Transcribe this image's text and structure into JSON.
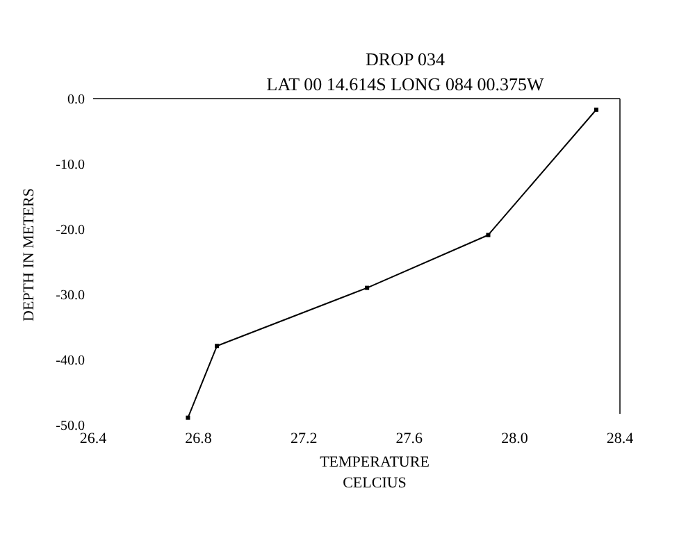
{
  "chart_data": {
    "type": "line",
    "title": "DROP 034",
    "subtitle": "LAT 00 14.614S  LONG 084 00.375W",
    "xlabel": "TEMPERATURE\nCELCIUS",
    "ylabel": "DEPTH IN METERS",
    "x": [
      28.31,
      27.9,
      27.44,
      26.87,
      26.76
    ],
    "series": [
      {
        "color": "#000000",
        "values": [
          -1.7,
          -20.9,
          -29.0,
          -37.9,
          -48.9
        ]
      }
    ],
    "xlim": [
      26.4,
      28.4
    ],
    "xticks": [
      {
        "value": 26.4,
        "label": "26.4"
      },
      {
        "value": 26.8,
        "label": "26.8"
      },
      {
        "value": 27.2,
        "label": "27.2"
      },
      {
        "value": 27.6,
        "label": "27.6"
      },
      {
        "value": 28.0,
        "label": "28.0"
      },
      {
        "value": 28.4,
        "label": "28.4"
      }
    ],
    "ylim": [
      -50,
      0
    ],
    "yticks": [
      {
        "value": 0,
        "label": "0.0"
      },
      {
        "value": -10,
        "label": "-10.0"
      },
      {
        "value": -20,
        "label": "-20.0"
      },
      {
        "value": -30,
        "label": "-30.0"
      },
      {
        "value": -40,
        "label": "-40.0"
      },
      {
        "value": -50,
        "label": "-50.0"
      }
    ],
    "marker": "square",
    "line_style": "solid",
    "grid": false
  }
}
